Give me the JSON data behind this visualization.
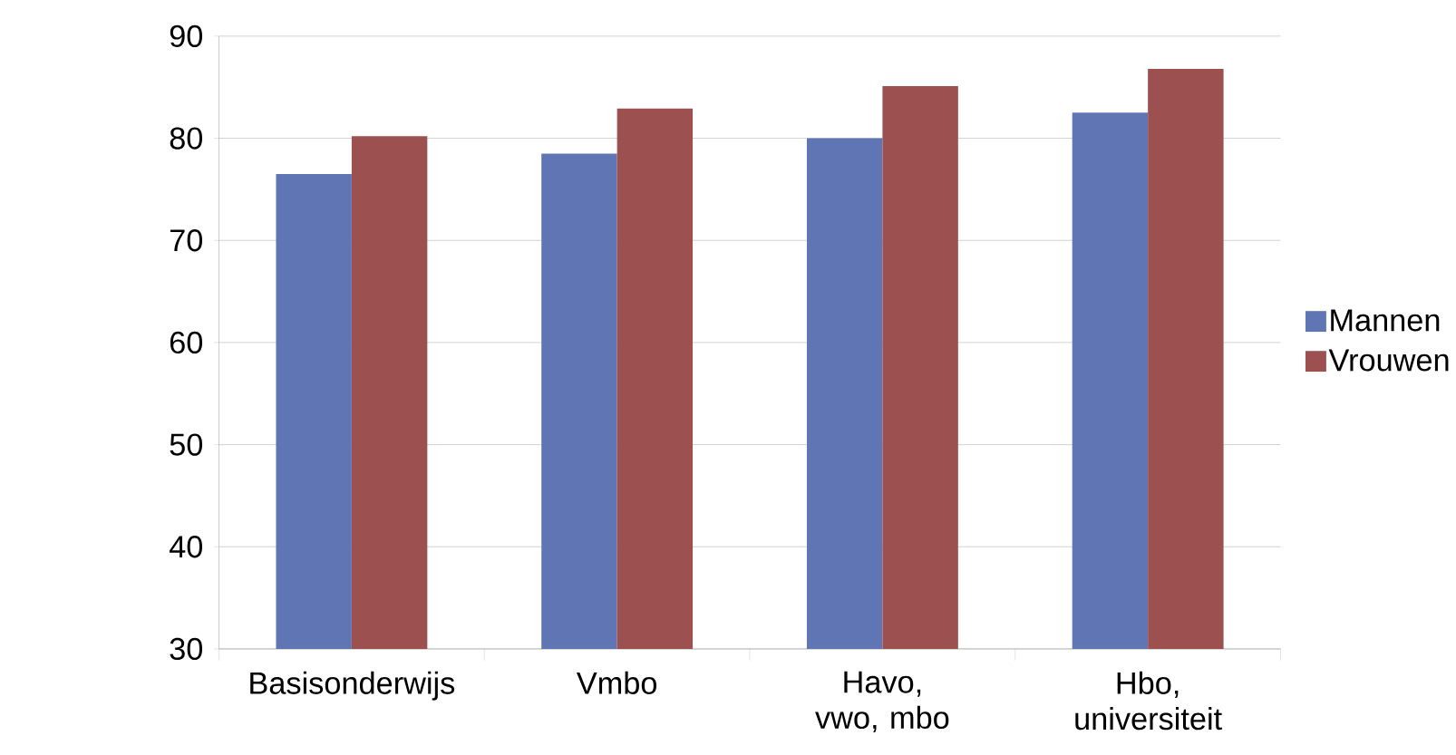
{
  "chart_data": {
    "type": "bar",
    "categories": [
      "Basisonderwijs",
      "Vmbo",
      "Havo, vwo, mbo",
      "Hbo, universiteit"
    ],
    "series": [
      {
        "name": "Mannen",
        "color": "#6076b4",
        "values": [
          76.5,
          78.5,
          80.0,
          82.5
        ]
      },
      {
        "name": "Vrouwen",
        "color": "#9c5150",
        "values": [
          80.2,
          82.9,
          85.1,
          86.8
        ]
      }
    ],
    "ylim": [
      30,
      90
    ],
    "yticks": [
      30,
      40,
      50,
      60,
      70,
      80,
      90
    ],
    "grid": "y",
    "legend": "right"
  }
}
